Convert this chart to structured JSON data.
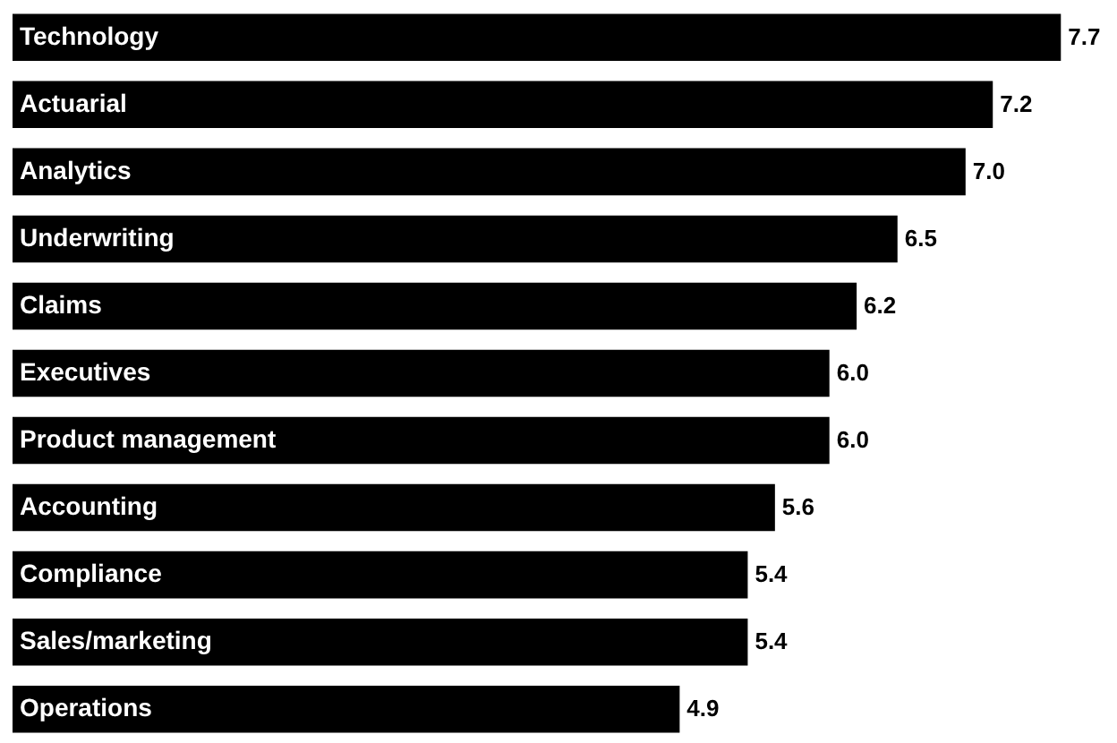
{
  "chart_data": {
    "type": "bar",
    "orientation": "horizontal",
    "value_labels": [
      "7.7",
      "7.2",
      "7.0",
      "6.5",
      "6.2",
      "6.0",
      "6.0",
      "5.6",
      "5.4",
      "5.4",
      "4.9"
    ],
    "color": "#000000",
    "categories": [
      "Technology",
      "Actuarial",
      "Analytics",
      "Underwriting",
      "Claims",
      "Executives",
      "Product management",
      "Accounting",
      "Compliance",
      "Sales/marketing",
      "Operations"
    ],
    "values": [
      7.7,
      7.2,
      7.0,
      6.5,
      6.2,
      6.0,
      6.0,
      5.6,
      5.4,
      5.4,
      4.9
    ]
  }
}
